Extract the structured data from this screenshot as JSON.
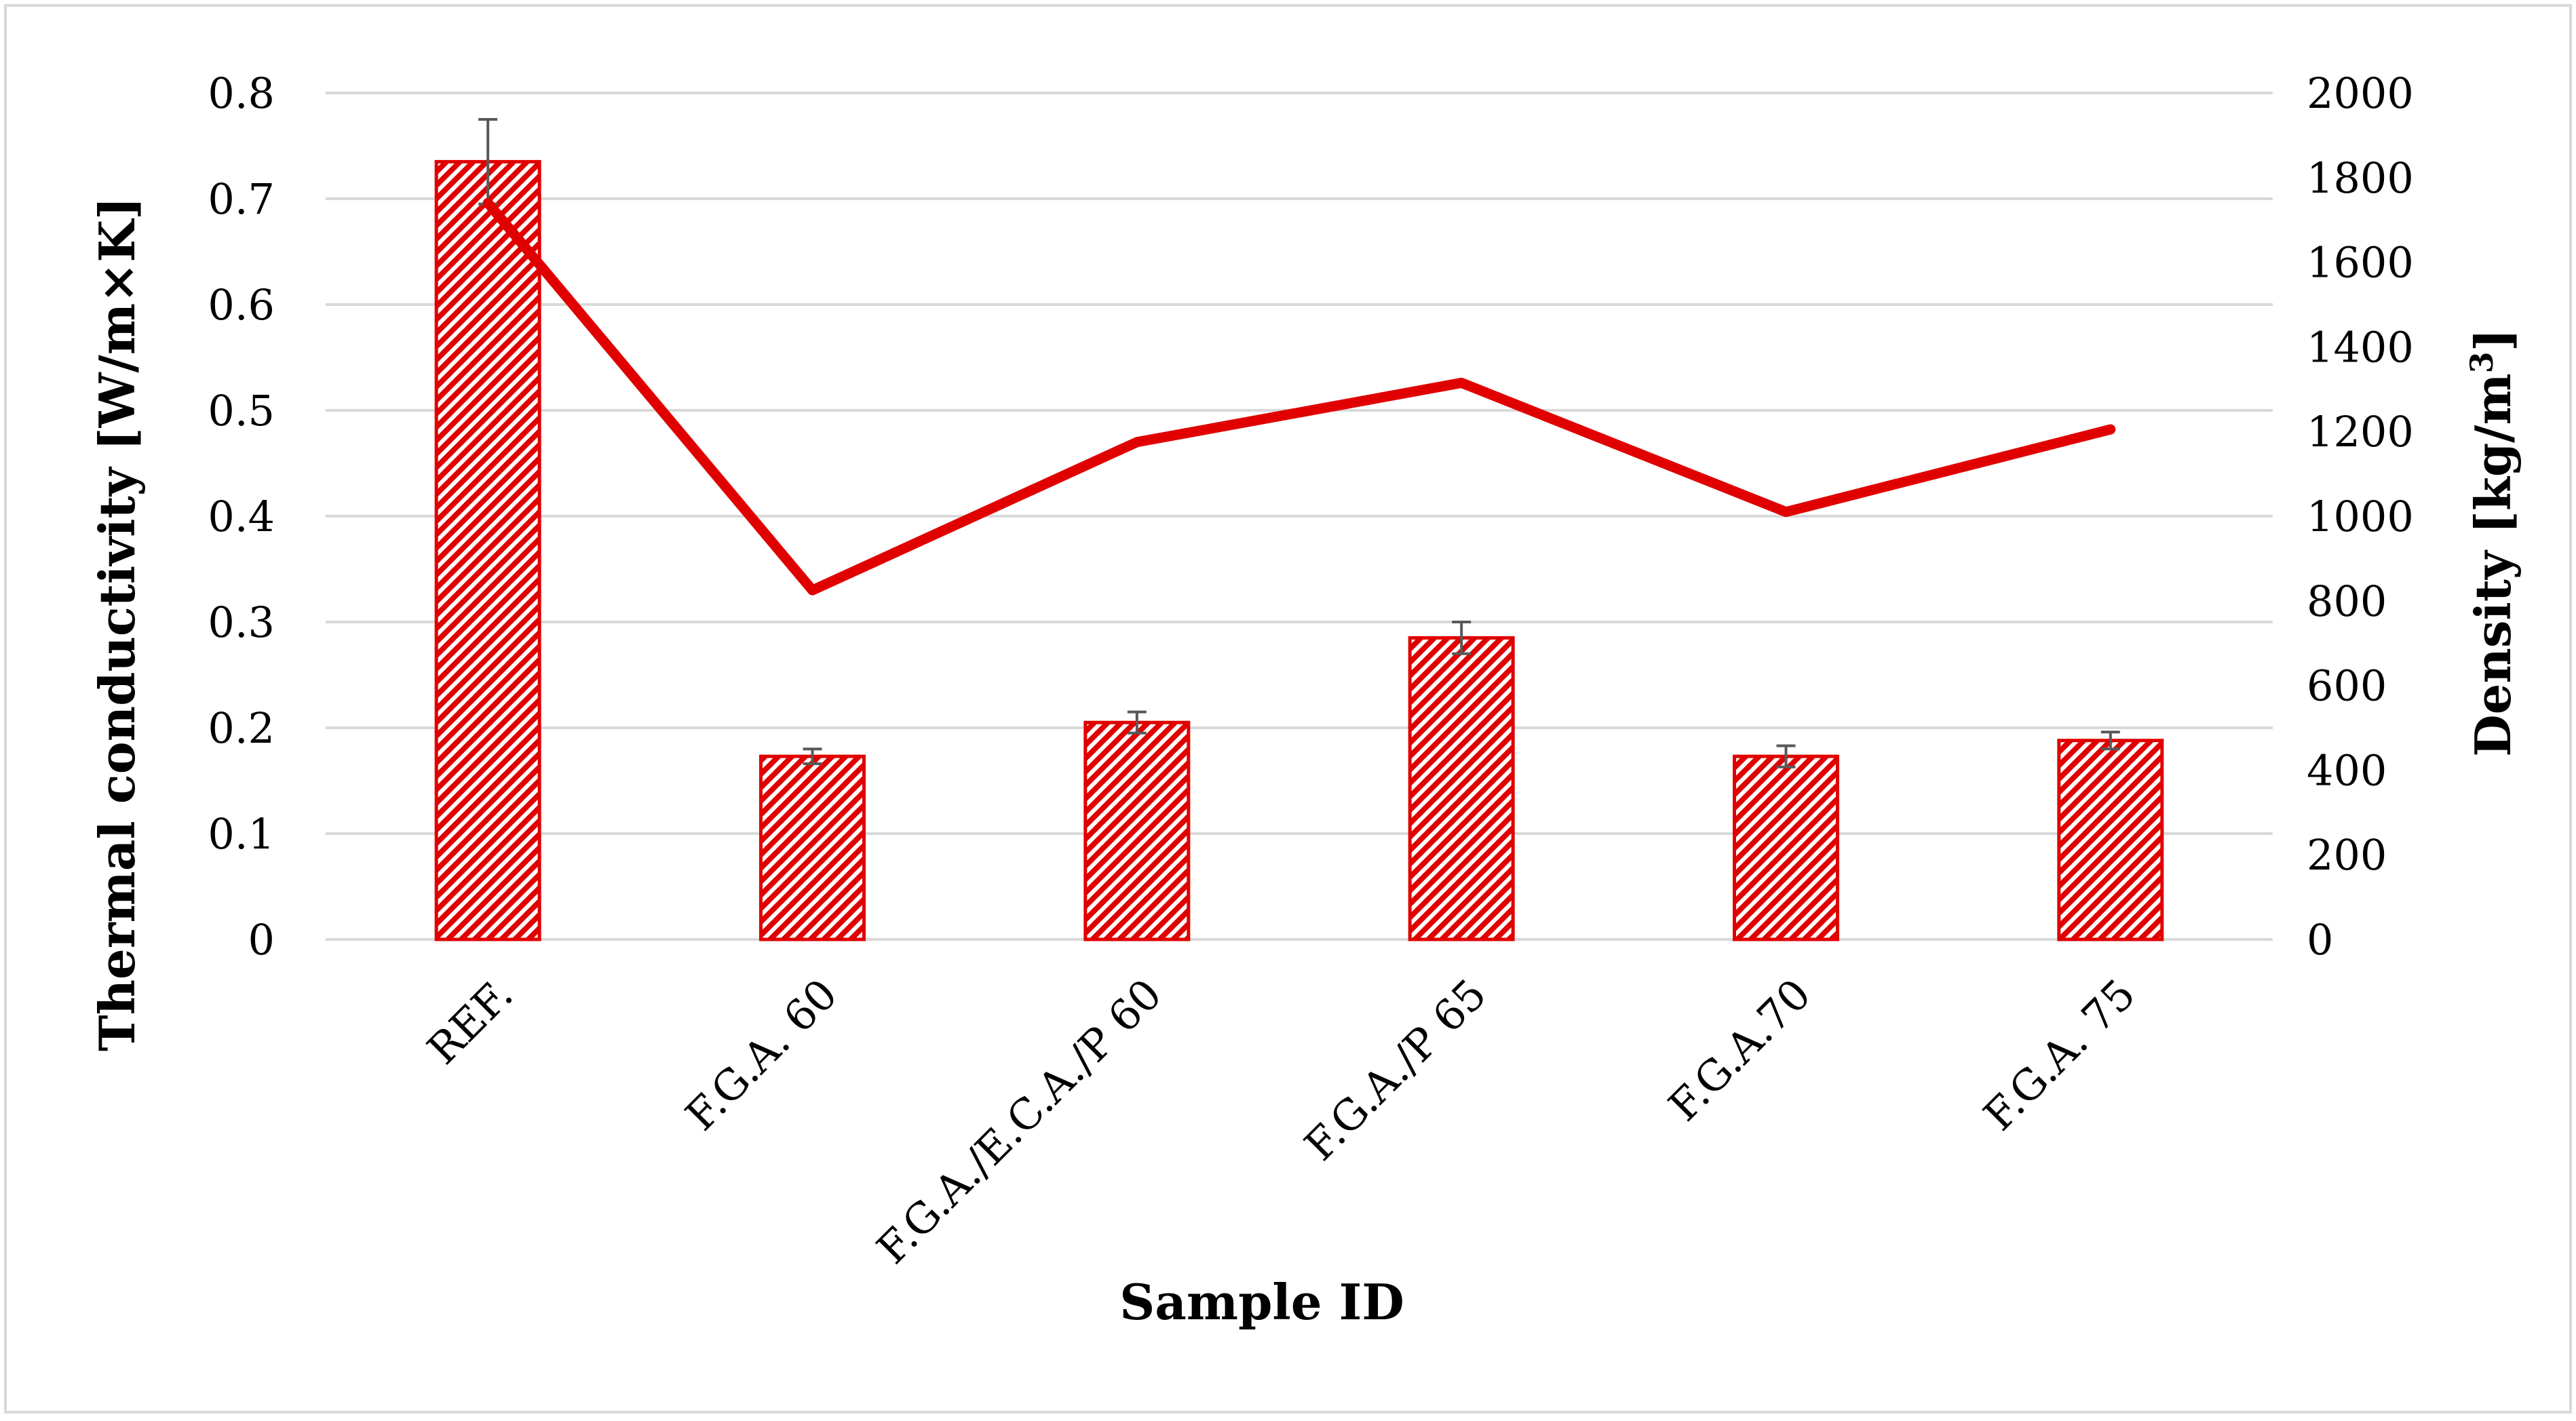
{
  "chart_data": {
    "type": "bar",
    "title": "",
    "xlabel": "Sample ID",
    "ylabel": "Thermal conductivity   [W/m×K]",
    "y2label_main": "Density  [kg/m",
    "y2label_sup": "3",
    "y2label_end": "]",
    "categories": [
      "REF.",
      "F.G.A. 60",
      "F.G.A./E.C.A./P 60",
      "F.G.A./P 65",
      "F.G.A.70",
      "F.G.A. 75"
    ],
    "ylim": [
      0,
      0.8
    ],
    "yticks": [
      "0",
      "0.1",
      "0.2",
      "0.3",
      "0.4",
      "0.5",
      "0.6",
      "0.7",
      "0.8"
    ],
    "y2lim": [
      0,
      2000
    ],
    "y2ticks": [
      "0",
      "200",
      "400",
      "600",
      "800",
      "1000",
      "1200",
      "1400",
      "1600",
      "1800",
      "2000"
    ],
    "grid": true,
    "colors": {
      "accent": "#e00000",
      "grid": "#d9d9d9",
      "errorbar": "#595959"
    },
    "series": [
      {
        "type": "bar",
        "axis": "left",
        "values": [
          0.735,
          0.173,
          0.205,
          0.285,
          0.173,
          0.188
        ],
        "error": [
          0.04,
          0.007,
          0.01,
          0.015,
          0.01,
          0.008
        ]
      },
      {
        "type": "line",
        "axis": "right",
        "values": [
          1740,
          825,
          1175,
          1315,
          1010,
          1205
        ]
      }
    ]
  }
}
